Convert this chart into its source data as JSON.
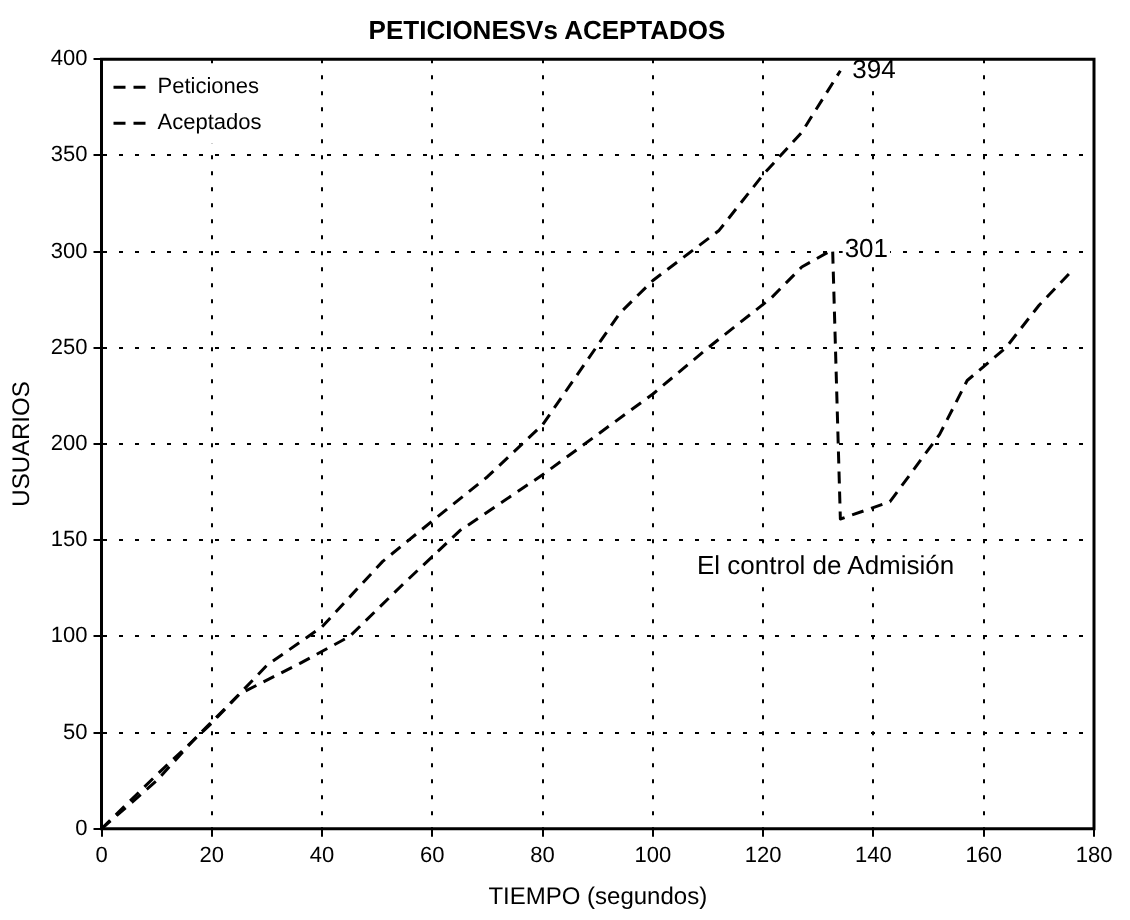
{
  "chart_data": {
    "type": "line",
    "title": "PETICIONESVs ACEPTADOS",
    "xlabel": "TIEMPO (segundos)",
    "ylabel": "USUARIOS",
    "xlim": [
      0,
      180
    ],
    "xticks": [
      0,
      20,
      40,
      60,
      80,
      100,
      120,
      140,
      160,
      180
    ],
    "ylim": [
      0,
      400
    ],
    "yticks": [
      0,
      50,
      100,
      150,
      200,
      250,
      300,
      350,
      400
    ],
    "grid": true,
    "legend": "top left",
    "marker": "none",
    "line_style": "dashed",
    "series": [
      {
        "name": "Peticiones",
        "color": "#000000",
        "x": [
          0,
          10,
          20,
          30,
          40,
          51,
          60,
          70,
          80,
          94,
          100,
          112,
          120,
          127,
          134
        ],
        "values": [
          0,
          28,
          55,
          85,
          105,
          139,
          160,
          183,
          210,
          268,
          285,
          311,
          340,
          362,
          394
        ]
      },
      {
        "name": "Aceptados",
        "color": "#000000",
        "x": [
          0,
          10,
          17,
          25,
          36,
          45,
          55,
          65,
          80,
          90,
          100,
          110,
          121.5,
          127,
          132.6,
          134,
          143,
          152,
          157,
          164,
          170,
          176
        ],
        "values": [
          0,
          25,
          47,
          70,
          86,
          100,
          128,
          155,
          184,
          205,
          226,
          250,
          276,
          292,
          301,
          161,
          170,
          205,
          233,
          250,
          272,
          290
        ]
      }
    ],
    "annotations": [
      {
        "text": "394",
        "x": 134,
        "y": 394
      },
      {
        "text": "301",
        "x": 132.6,
        "y": 301
      },
      "El control de Admisión"
    ]
  }
}
